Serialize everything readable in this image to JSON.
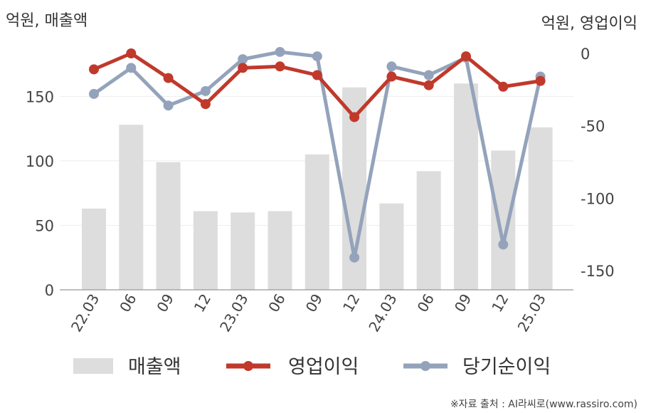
{
  "chart_data": {
    "type": "bar+line",
    "left_axis_label": "억원, 매출액",
    "right_axis_label": "억원, 영업이익",
    "categories": [
      "22.03",
      "06",
      "09",
      "12",
      "23.03",
      "06",
      "09",
      "12",
      "24.03",
      "06",
      "09",
      "12",
      "25.03"
    ],
    "left_ylim": [
      0,
      185
    ],
    "left_ticks": [
      0,
      50,
      100,
      150
    ],
    "right_ylim": [
      -165,
      0
    ],
    "right_ticks": [
      0,
      -50,
      -100,
      -150
    ],
    "series": [
      {
        "name": "매출액",
        "type": "bar",
        "axis": "left",
        "color": "#dddddd",
        "values": [
          63,
          128,
          99,
          61,
          60,
          61,
          105,
          157,
          67,
          92,
          160,
          108,
          126
        ]
      },
      {
        "name": "영업이익",
        "type": "line",
        "axis": "right",
        "color": "#c0392b",
        "values": [
          -11,
          0,
          -17,
          -35,
          -10,
          -9,
          -15,
          -44,
          -16,
          -22,
          -2,
          -23,
          -19
        ]
      },
      {
        "name": "당기순이익",
        "type": "line",
        "axis": "right",
        "color": "#94a3bb",
        "values": [
          -28,
          -10,
          -36,
          -26,
          -4,
          1,
          -2,
          -141,
          -9,
          -15,
          -3,
          -132,
          -16
        ]
      }
    ],
    "grid": true,
    "legend_position": "bottom"
  },
  "source_note": "※자료 출처 : AI라씨로(www.rassiro.com)"
}
